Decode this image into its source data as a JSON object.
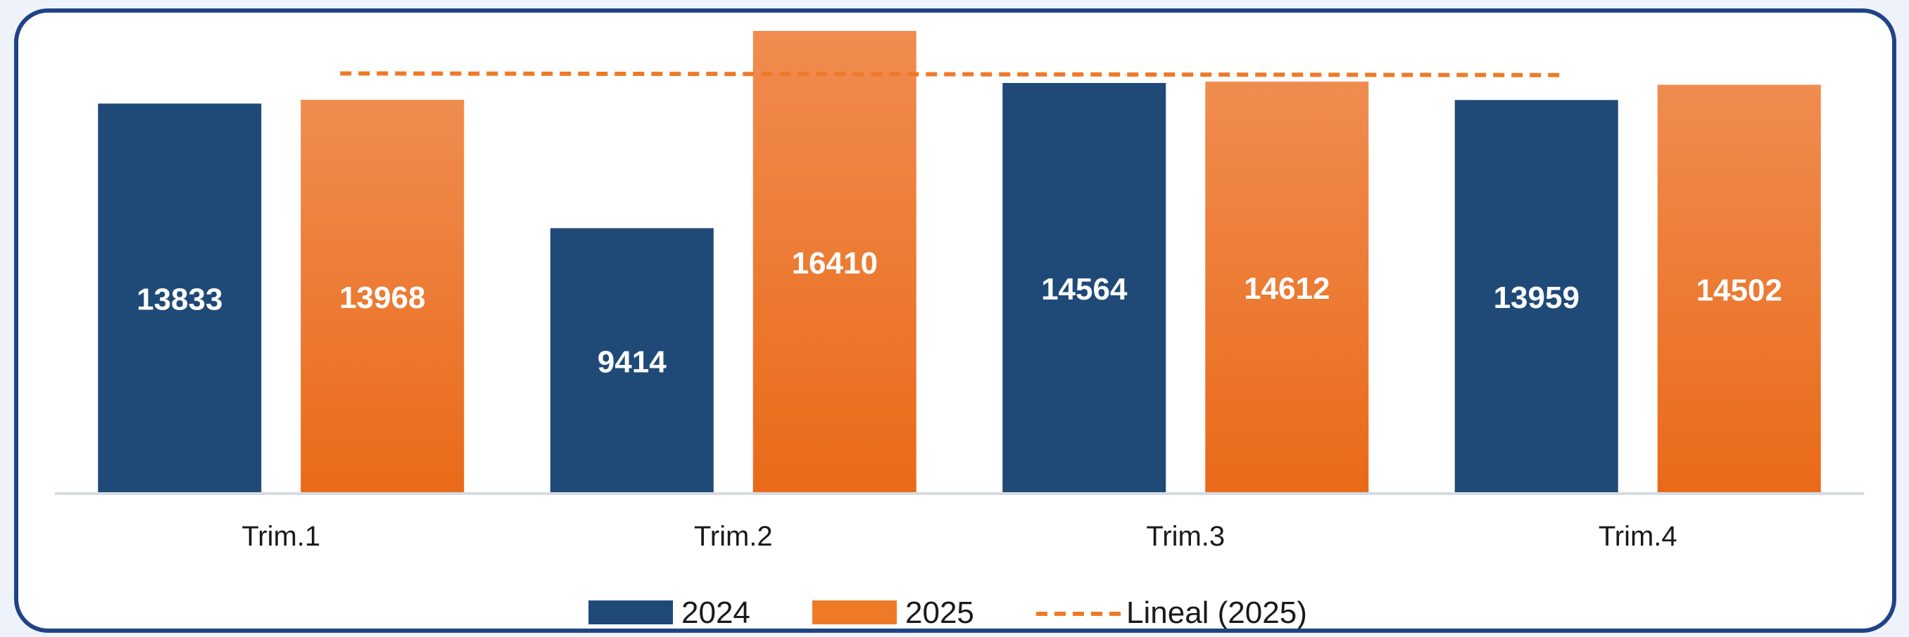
{
  "chart_data": {
    "type": "bar",
    "categories": [
      "Trim.1",
      "Trim.2",
      "Trim.3",
      "Trim.4"
    ],
    "series": [
      {
        "name": "2024",
        "values": [
          13833,
          9414,
          14564,
          13959
        ],
        "color": "#1f4a78"
      },
      {
        "name": "2025",
        "values": [
          13968,
          16410,
          14612,
          14502
        ],
        "color": "#ee7a28",
        "color_top": "#f08c50"
      }
    ],
    "trendline": {
      "name": "Lineal (2025)",
      "series": "2025",
      "type": "linear",
      "color": "#ee7a28"
    },
    "legend_position": "bottom",
    "grid": false,
    "ylim": [
      0,
      16410
    ]
  }
}
